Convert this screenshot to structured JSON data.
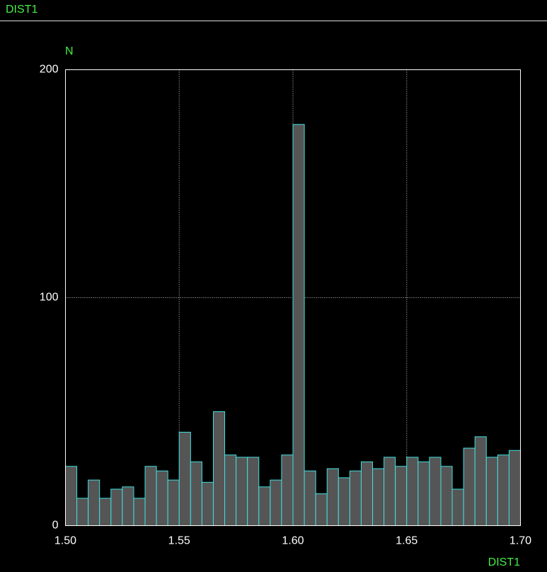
{
  "header": {
    "title": "DIST1"
  },
  "chart_data": {
    "type": "histogram",
    "ylabel": "N",
    "xlabel": "DIST1",
    "bins": [
      1.5,
      1.505,
      1.51,
      1.515,
      1.52,
      1.525,
      1.53,
      1.535,
      1.54,
      1.545,
      1.55,
      1.555,
      1.56,
      1.565,
      1.57,
      1.575,
      1.58,
      1.585,
      1.59,
      1.595,
      1.6,
      1.605,
      1.61,
      1.615,
      1.62,
      1.625,
      1.63,
      1.635,
      1.64,
      1.645,
      1.65,
      1.655,
      1.66,
      1.665,
      1.67,
      1.675,
      1.68,
      1.685,
      1.69,
      1.695,
      1.7
    ],
    "values": [
      26,
      12,
      20,
      12,
      16,
      17,
      12,
      26,
      24,
      20,
      41,
      28,
      19,
      50,
      31,
      30,
      30,
      17,
      20,
      31,
      176,
      24,
      14,
      25,
      21,
      24,
      28,
      25,
      30,
      26,
      30,
      28,
      30,
      26,
      16,
      34,
      39,
      30,
      31,
      33
    ],
    "color": "#555555",
    "edgecolor": "#40e0e0",
    "xlim": [
      1.5,
      1.7
    ],
    "xticks": [
      {
        "value": 1.5,
        "label": "1.50"
      },
      1.55,
      {
        "value": 1.6,
        "label": "1.60"
      },
      1.65,
      {
        "value": 1.7,
        "label": "1.70"
      }
    ],
    "ylim": [
      0,
      200
    ],
    "yticks": [
      0,
      100,
      200
    ],
    "grid": true
  }
}
